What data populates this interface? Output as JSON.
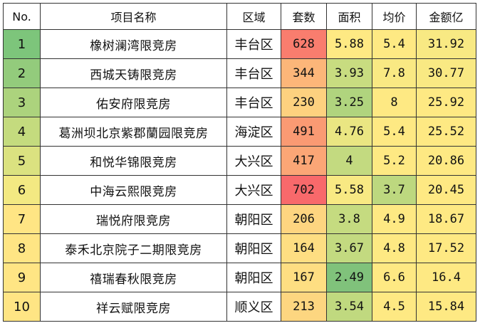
{
  "table": {
    "headers": [
      "No.",
      "项目名称",
      "区域",
      "套数",
      "面积",
      "均价",
      "金额亿"
    ],
    "rows": [
      {
        "no": "1",
        "name": "橡树澜湾限竞房",
        "area": "丰台区",
        "units": "628",
        "size": "5.88",
        "avg": "5.4",
        "amount": "31.92"
      },
      {
        "no": "2",
        "name": "西城天铸限竞房",
        "area": "丰台区",
        "units": "344",
        "size": "3.93",
        "avg": "7.8",
        "amount": "30.77"
      },
      {
        "no": "3",
        "name": "佑安府限竞房",
        "area": "丰台区",
        "units": "230",
        "size": "3.25",
        "avg": "8",
        "amount": "25.92"
      },
      {
        "no": "4",
        "name": "葛洲坝北京紫郡蘭园限竞房",
        "area": "海淀区",
        "units": "491",
        "size": "4.76",
        "avg": "5.4",
        "amount": "25.52"
      },
      {
        "no": "5",
        "name": "和悦华锦限竞房",
        "area": "大兴区",
        "units": "417",
        "size": "4",
        "avg": "5.2",
        "amount": "20.86"
      },
      {
        "no": "6",
        "name": "中海云熙限竞房",
        "area": "大兴区",
        "units": "702",
        "size": "5.58",
        "avg": "3.7",
        "amount": "20.45"
      },
      {
        "no": "7",
        "name": "瑞悦府限竞房",
        "area": "朝阳区",
        "units": "206",
        "size": "3.8",
        "avg": "4.9",
        "amount": "18.67"
      },
      {
        "no": "8",
        "name": "泰禾北京院子二期限竞房",
        "area": "朝阳区",
        "units": "164",
        "size": "3.67",
        "avg": "4.8",
        "amount": "17.52"
      },
      {
        "no": "9",
        "name": "禧瑞春秋限竞房",
        "area": "朝阳区",
        "units": "167",
        "size": "2.49",
        "avg": "6.6",
        "amount": "16.4"
      },
      {
        "no": "10",
        "name": "祥云赋限竞房",
        "area": "顺义区",
        "units": "213",
        "size": "3.54",
        "avg": "4.5",
        "amount": "15.84"
      }
    ],
    "colors": {
      "no": [
        "#7dc57b",
        "#93cb7c",
        "#acd37d",
        "#c4db7e",
        "#dbe280",
        "#f3e982",
        "#ffe584",
        "#ffe584",
        "#ffe584",
        "#ffe584"
      ],
      "units": [
        "#f97d6e",
        "#fcb679",
        "#fdd17f",
        "#fa9a73",
        "#fba676",
        "#f8696b",
        "#fed580",
        "#fede82",
        "#fede82",
        "#fdd680"
      ],
      "size": [
        "#fee983",
        "#c8dc80",
        "#b0d47e",
        "#eae682",
        "#c3da80",
        "#f8e983",
        "#c5db80",
        "#c3da80",
        "#80c27b",
        "#c0d97f"
      ],
      "avg": [
        "#fee983",
        "#f9e983",
        "#fee983",
        "#fee983",
        "#fee983",
        "#bdd87f",
        "#fee983",
        "#fee983",
        "#fee983",
        "#fee983"
      ],
      "amount": [
        "#f8e983",
        "#f9e983",
        "#fee983",
        "#fee983",
        "#fee983",
        "#fee983",
        "#fee983",
        "#fee983",
        "#fee983",
        "#fee983"
      ]
    }
  }
}
